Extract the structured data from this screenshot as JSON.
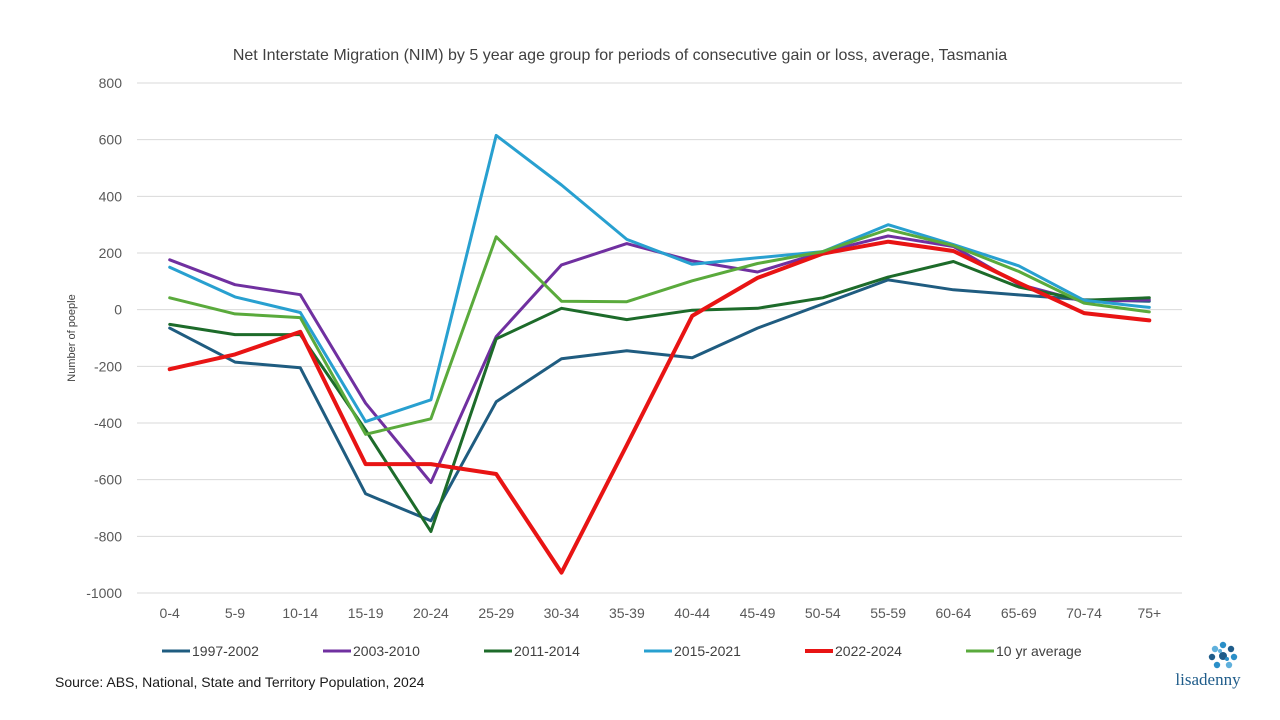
{
  "chart_data": {
    "type": "line",
    "title": "Net Interstate Migration (NIM) by 5 year age group for periods of consecutive gain or loss, average, Tasmania",
    "xlabel": "",
    "ylabel": "Number of poeple",
    "ylim": [
      -1000,
      800
    ],
    "yticks": [
      800,
      600,
      400,
      200,
      0,
      -200,
      -400,
      -600,
      -800,
      -1000
    ],
    "grid": true,
    "legend_position": "bottom",
    "categories": [
      "0-4",
      "5-9",
      "10-14",
      "15-19",
      "20-24",
      "25-29",
      "30-34",
      "35-39",
      "40-44",
      "45-49",
      "50-54",
      "55-59",
      "60-64",
      "65-69",
      "70-74",
      "75+"
    ],
    "series": [
      {
        "name": "1997-2002",
        "color": "#1f5c80",
        "width": 3,
        "values": [
          -65,
          -185,
          -205,
          -650,
          -745,
          -325,
          -173,
          -145,
          -170,
          -65,
          20,
          105,
          70,
          52,
          35,
          30
        ]
      },
      {
        "name": "2003-2010",
        "color": "#7030a0",
        "width": 3,
        "values": [
          176,
          88,
          53,
          -330,
          -610,
          -95,
          158,
          233,
          172,
          133,
          203,
          260,
          223,
          90,
          28,
          35
        ]
      },
      {
        "name": "2011-2014",
        "color": "#1d6b2a",
        "width": 3,
        "values": [
          -52,
          -88,
          -88,
          -425,
          -783,
          -103,
          5,
          -35,
          -2,
          5,
          42,
          115,
          170,
          80,
          33,
          42
        ]
      },
      {
        "name": "2015-2021",
        "color": "#28a0d0",
        "width": 3,
        "values": [
          150,
          45,
          -10,
          -395,
          -318,
          615,
          440,
          248,
          160,
          183,
          205,
          300,
          230,
          155,
          33,
          8
        ]
      },
      {
        "name": "2022-2024",
        "color": "#e81414",
        "width": 4,
        "values": [
          -210,
          -158,
          -78,
          -545,
          -545,
          -580,
          -928,
          -478,
          -22,
          112,
          198,
          240,
          207,
          95,
          -12,
          -38
        ]
      },
      {
        "name": "10 yr average",
        "color": "#5aaa3c",
        "width": 3,
        "values": [
          42,
          -15,
          -28,
          -440,
          -385,
          257,
          30,
          28,
          102,
          163,
          205,
          283,
          226,
          135,
          23,
          -8
        ]
      }
    ]
  },
  "source": "Source: ABS, National, State and Territory Population, 2024",
  "logo": {
    "text": "lisadenny",
    "color": "#1f5c8a"
  }
}
